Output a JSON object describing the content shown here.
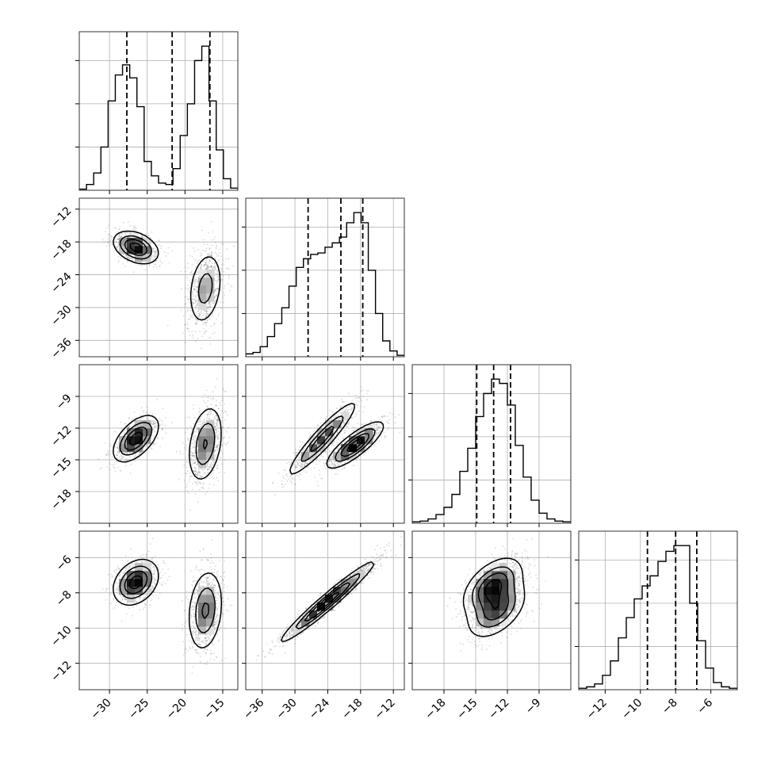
{
  "chart_data": {
    "type": "corner",
    "title": "",
    "grid": true,
    "n_params": 4,
    "style": {
      "line_color": "#000000",
      "grid_color": "#b0b0b0",
      "scatter_color": "#555555",
      "background": "#ffffff"
    },
    "params": [
      {
        "index": 0,
        "range": [
          -34.0,
          -13.0
        ],
        "ticks": [
          -30,
          -25,
          -20,
          -15
        ],
        "tick_labels": [
          "−30",
          "−25",
          "−20",
          "−15"
        ],
        "quantiles": [
          -27.7,
          -21.7,
          -16.7
        ],
        "histogram": [
          0.008,
          0.04,
          0.12,
          0.3,
          0.62,
          0.8,
          0.87,
          0.78,
          0.58,
          0.2,
          0.1,
          0.05,
          0.04,
          0.15,
          0.38,
          0.6,
          0.9,
          1.0,
          0.62,
          0.28,
          0.08,
          0.015
        ]
      },
      {
        "index": 1,
        "range": [
          -39.0,
          -10.0
        ],
        "ticks": [
          -36,
          -30,
          -24,
          -18,
          -12
        ],
        "tick_labels": [
          "−36",
          "−30",
          "−24",
          "−18",
          "−12"
        ],
        "quantiles": [
          -27.6,
          -21.6,
          -17.6
        ],
        "histogram": [
          0.02,
          0.03,
          0.07,
          0.14,
          0.23,
          0.34,
          0.49,
          0.62,
          0.68,
          0.71,
          0.72,
          0.76,
          0.79,
          0.83,
          0.93,
          1.0,
          0.93,
          0.6,
          0.3,
          0.11,
          0.04,
          0.01
        ]
      },
      {
        "index": 2,
        "range": [
          -21.0,
          -6.0
        ],
        "ticks": [
          -18,
          -15,
          -12,
          -9
        ],
        "tick_labels": [
          "−18",
          "−15",
          "−12",
          "−9"
        ],
        "quantiles": [
          -14.9,
          -13.3,
          -11.7
        ],
        "histogram": [
          0.01,
          0.015,
          0.03,
          0.06,
          0.11,
          0.2,
          0.36,
          0.52,
          0.74,
          0.9,
          1.0,
          0.97,
          0.82,
          0.54,
          0.32,
          0.16,
          0.07,
          0.03,
          0.015,
          0.01
        ]
      },
      {
        "index": 3,
        "range": [
          -13.5,
          -4.5
        ],
        "ticks": [
          -12,
          -10,
          -8,
          -6
        ],
        "tick_labels": [
          "−12",
          "−10",
          "−8",
          "−6"
        ],
        "quantiles": [
          -9.6,
          -8.0,
          -6.8
        ],
        "histogram": [
          0.01,
          0.02,
          0.04,
          0.1,
          0.2,
          0.36,
          0.5,
          0.63,
          0.72,
          0.79,
          0.89,
          0.96,
          1.0,
          1.0,
          0.6,
          0.34,
          0.15,
          0.05,
          0.02,
          0.01
        ]
      }
    ],
    "pairs": [
      {
        "x": 0,
        "y": 1,
        "modes": [
          {
            "center": [
              -26.5,
              -19.0
            ],
            "sd": [
              1.5,
              1.5
            ],
            "rho": -0.35,
            "weight": 0.5
          },
          {
            "center": [
              -17.3,
              -26.5
            ],
            "sd": [
              1.2,
              3.6
            ],
            "rho": 0.25,
            "weight": 0.5
          }
        ]
      },
      {
        "x": 0,
        "y": 2,
        "modes": [
          {
            "center": [
              -26.5,
              -13.0
            ],
            "sd": [
              1.5,
              1.1
            ],
            "rho": 0.55,
            "weight": 0.5
          },
          {
            "center": [
              -17.3,
              -13.5
            ],
            "sd": [
              1.2,
              1.9
            ],
            "rho": 0.3,
            "weight": 0.5
          }
        ]
      },
      {
        "x": 1,
        "y": 2,
        "modes": [
          {
            "center": [
              -25.0,
              -13.0
            ],
            "sd": [
              3.2,
              1.8
            ],
            "rho": 0.93,
            "weight": 0.5
          },
          {
            "center": [
              -19.0,
              -13.6
            ],
            "sd": [
              2.6,
              1.1
            ],
            "rho": 0.82,
            "weight": 0.5
          }
        ]
      },
      {
        "x": 0,
        "y": 3,
        "modes": [
          {
            "center": [
              -26.5,
              -7.4
            ],
            "sd": [
              1.5,
              0.65
            ],
            "rho": 0.3,
            "weight": 0.5
          },
          {
            "center": [
              -17.3,
              -9.0
            ],
            "sd": [
              1.2,
              1.2
            ],
            "rho": 0.2,
            "weight": 0.5
          }
        ]
      },
      {
        "x": 1,
        "y": 3,
        "modes": [
          {
            "center": [
              -24.0,
              -8.5
            ],
            "sd": [
              4.3,
              1.15
            ],
            "rho": 0.97,
            "weight": 1.0
          }
        ]
      },
      {
        "x": 2,
        "y": 3,
        "modes": [
          {
            "center": [
              -13.4,
              -7.6
            ],
            "sd": [
              1.4,
              0.8
            ],
            "rho": 0.5,
            "weight": 0.55
          },
          {
            "center": [
              -13.0,
              -9.0
            ],
            "sd": [
              1.4,
              0.8
            ],
            "rho": 0.5,
            "weight": 0.45
          }
        ]
      }
    ]
  }
}
